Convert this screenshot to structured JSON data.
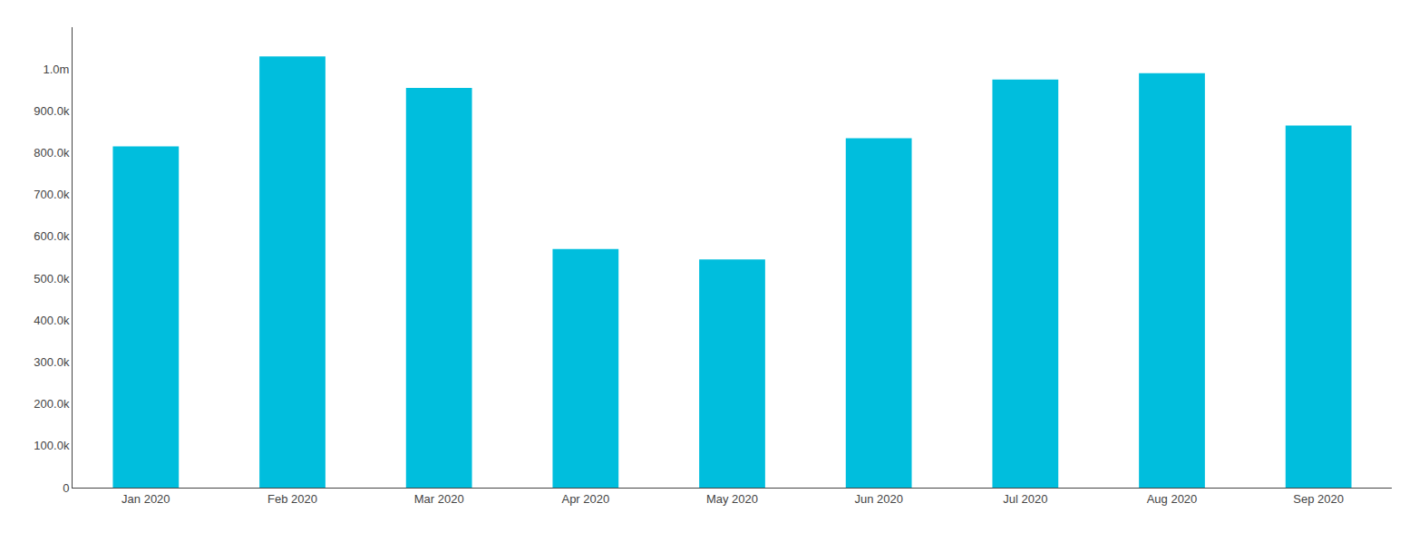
{
  "chart_data": {
    "type": "bar",
    "categories": [
      "Jan 2020",
      "Feb 2020",
      "Mar 2020",
      "Apr 2020",
      "May 2020",
      "Jun 2020",
      "Jul 2020",
      "Aug 2020",
      "Sep 2020"
    ],
    "values": [
      815000,
      1030000,
      955000,
      570000,
      545000,
      835000,
      975000,
      990000,
      865000
    ],
    "color": "#00BEDD",
    "ylim": [
      0,
      1100000
    ],
    "yticks": [
      0,
      {
        "value": 100000,
        "label": "100.0k"
      },
      {
        "value": 200000,
        "label": "200.0k"
      },
      {
        "value": 300000,
        "label": "300.0k"
      },
      {
        "value": 400000,
        "label": "400.0k"
      },
      {
        "value": 500000,
        "label": "500.0k"
      },
      {
        "value": 600000,
        "label": "600.0k"
      },
      {
        "value": 700000,
        "label": "700.0k"
      },
      {
        "value": 800000,
        "label": "800.0k"
      },
      {
        "value": 900000,
        "label": "900.0k"
      },
      {
        "value": 1000000,
        "label": "1.0m"
      }
    ],
    "grid": false
  }
}
